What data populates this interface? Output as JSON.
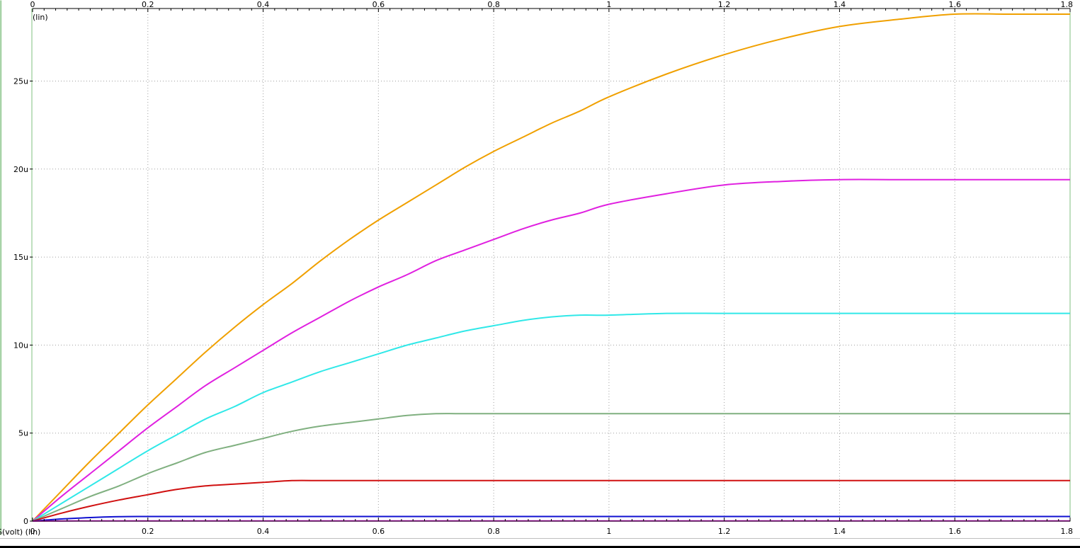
{
  "chart_data": {
    "type": "line",
    "y_scale_label": "(lin)",
    "x_axis_caption": "S(volt) (lin)",
    "xlim": [
      0,
      1.8
    ],
    "ylim": [
      0,
      2.85e-05
    ],
    "grid": true,
    "x_ticks": [
      {
        "value": 0,
        "label": "0"
      },
      {
        "value": 0.2,
        "label": "0.2"
      },
      {
        "value": 0.4,
        "label": "0.4"
      },
      {
        "value": 0.6,
        "label": "0.6"
      },
      {
        "value": 0.8,
        "label": "0.8"
      },
      {
        "value": 1.0,
        "label": "1"
      },
      {
        "value": 1.2,
        "label": "1.2"
      },
      {
        "value": 1.4,
        "label": "1.4"
      },
      {
        "value": 1.6,
        "label": "1.6"
      },
      {
        "value": 1.8,
        "label": "1.8"
      }
    ],
    "y_ticks": [
      {
        "value": 0,
        "label": "0"
      },
      {
        "value": 5e-06,
        "label": "5u"
      },
      {
        "value": 1e-05,
        "label": "10u"
      },
      {
        "value": 1.5e-05,
        "label": "15u"
      },
      {
        "value": 2e-05,
        "label": "20u"
      },
      {
        "value": 2.5e-05,
        "label": "25u"
      }
    ],
    "x": [
      0,
      0.05,
      0.1,
      0.15,
      0.2,
      0.25,
      0.3,
      0.35,
      0.4,
      0.45,
      0.5,
      0.55,
      0.6,
      0.65,
      0.7,
      0.75,
      0.8,
      0.85,
      0.9,
      0.95,
      1.0,
      1.1,
      1.2,
      1.3,
      1.4,
      1.5,
      1.6,
      1.7,
      1.8
    ],
    "series": [
      {
        "color": "#f0a000",
        "values": [
          0,
          1.7e-06,
          3.4e-06,
          5e-06,
          6.6e-06,
          8.1e-06,
          9.6e-06,
          1.1e-05,
          1.23e-05,
          1.35e-05,
          1.48e-05,
          1.6e-05,
          1.71e-05,
          1.81e-05,
          1.91e-05,
          2.01e-05,
          2.1e-05,
          2.18e-05,
          2.26e-05,
          2.33e-05,
          2.41e-05,
          2.54e-05,
          2.65e-05,
          2.74e-05,
          2.81e-05,
          2.85e-05,
          2.88e-05,
          2.88e-05,
          2.88e-05
        ]
      },
      {
        "color": "#e020e0",
        "values": [
          0,
          1.4e-06,
          2.7e-06,
          4e-06,
          5.3e-06,
          6.5e-06,
          7.7e-06,
          8.7e-06,
          9.7e-06,
          1.07e-05,
          1.16e-05,
          1.25e-05,
          1.33e-05,
          1.4e-05,
          1.48e-05,
          1.54e-05,
          1.6e-05,
          1.66e-05,
          1.71e-05,
          1.75e-05,
          1.8e-05,
          1.86e-05,
          1.91e-05,
          1.93e-05,
          1.94e-05,
          1.94e-05,
          1.94e-05,
          1.94e-05,
          1.94e-05
        ]
      },
      {
        "color": "#30e8e8",
        "values": [
          0,
          1e-06,
          2e-06,
          3e-06,
          4e-06,
          4.9e-06,
          5.8e-06,
          6.5e-06,
          7.3e-06,
          7.9e-06,
          8.5e-06,
          9e-06,
          9.5e-06,
          1e-05,
          1.04e-05,
          1.08e-05,
          1.11e-05,
          1.14e-05,
          1.16e-05,
          1.17e-05,
          1.17e-05,
          1.18e-05,
          1.18e-05,
          1.18e-05,
          1.18e-05,
          1.18e-05,
          1.18e-05,
          1.18e-05,
          1.18e-05
        ]
      },
      {
        "color": "#80b080",
        "values": [
          0,
          7e-07,
          1.4e-06,
          2e-06,
          2.7e-06,
          3.3e-06,
          3.9e-06,
          4.3e-06,
          4.7e-06,
          5.1e-06,
          5.4e-06,
          5.6e-06,
          5.8e-06,
          6e-06,
          6.1e-06,
          6.1e-06,
          6.1e-06,
          6.1e-06,
          6.1e-06,
          6.1e-06,
          6.1e-06,
          6.1e-06,
          6.1e-06,
          6.1e-06,
          6.1e-06,
          6.1e-06,
          6.1e-06,
          6.1e-06,
          6.1e-06
        ]
      },
      {
        "color": "#d01010",
        "values": [
          0,
          4.5e-07,
          8.5e-07,
          1.2e-06,
          1.5e-06,
          1.8e-06,
          2e-06,
          2.1e-06,
          2.2e-06,
          2.3e-06,
          2.3e-06,
          2.3e-06,
          2.3e-06,
          2.3e-06,
          2.3e-06,
          2.3e-06,
          2.3e-06,
          2.3e-06,
          2.3e-06,
          2.3e-06,
          2.3e-06,
          2.3e-06,
          2.3e-06,
          2.3e-06,
          2.3e-06,
          2.3e-06,
          2.3e-06,
          2.3e-06,
          2.3e-06
        ]
      },
      {
        "color": "#1010d0",
        "values": [
          0,
          1.2e-07,
          2e-07,
          2.5e-07,
          2.6e-07,
          2.6e-07,
          2.6e-07,
          2.6e-07,
          2.6e-07,
          2.6e-07,
          2.6e-07,
          2.6e-07,
          2.6e-07,
          2.6e-07,
          2.6e-07,
          2.6e-07,
          2.6e-07,
          2.6e-07,
          2.6e-07,
          2.6e-07,
          2.6e-07,
          2.6e-07,
          2.6e-07,
          2.6e-07,
          2.6e-07,
          2.6e-07,
          2.6e-07,
          2.6e-07,
          2.6e-07
        ]
      },
      {
        "color": "#e020e0",
        "values": [
          0,
          5e-09,
          1e-08,
          1e-08,
          1e-08,
          1e-08,
          1e-08,
          1e-08,
          1e-08,
          1e-08,
          1e-08,
          1e-08,
          1e-08,
          1e-08,
          1e-08,
          1e-08,
          1e-08,
          1e-08,
          1e-08,
          1e-08,
          1e-08,
          1e-08,
          1e-08,
          1e-08,
          1e-08,
          1e-08,
          1e-08,
          1e-08,
          1e-08
        ]
      }
    ]
  },
  "colors": {
    "frame": "#7fbf7f",
    "grid": "#a0a0a0",
    "background": "#ffffff"
  }
}
